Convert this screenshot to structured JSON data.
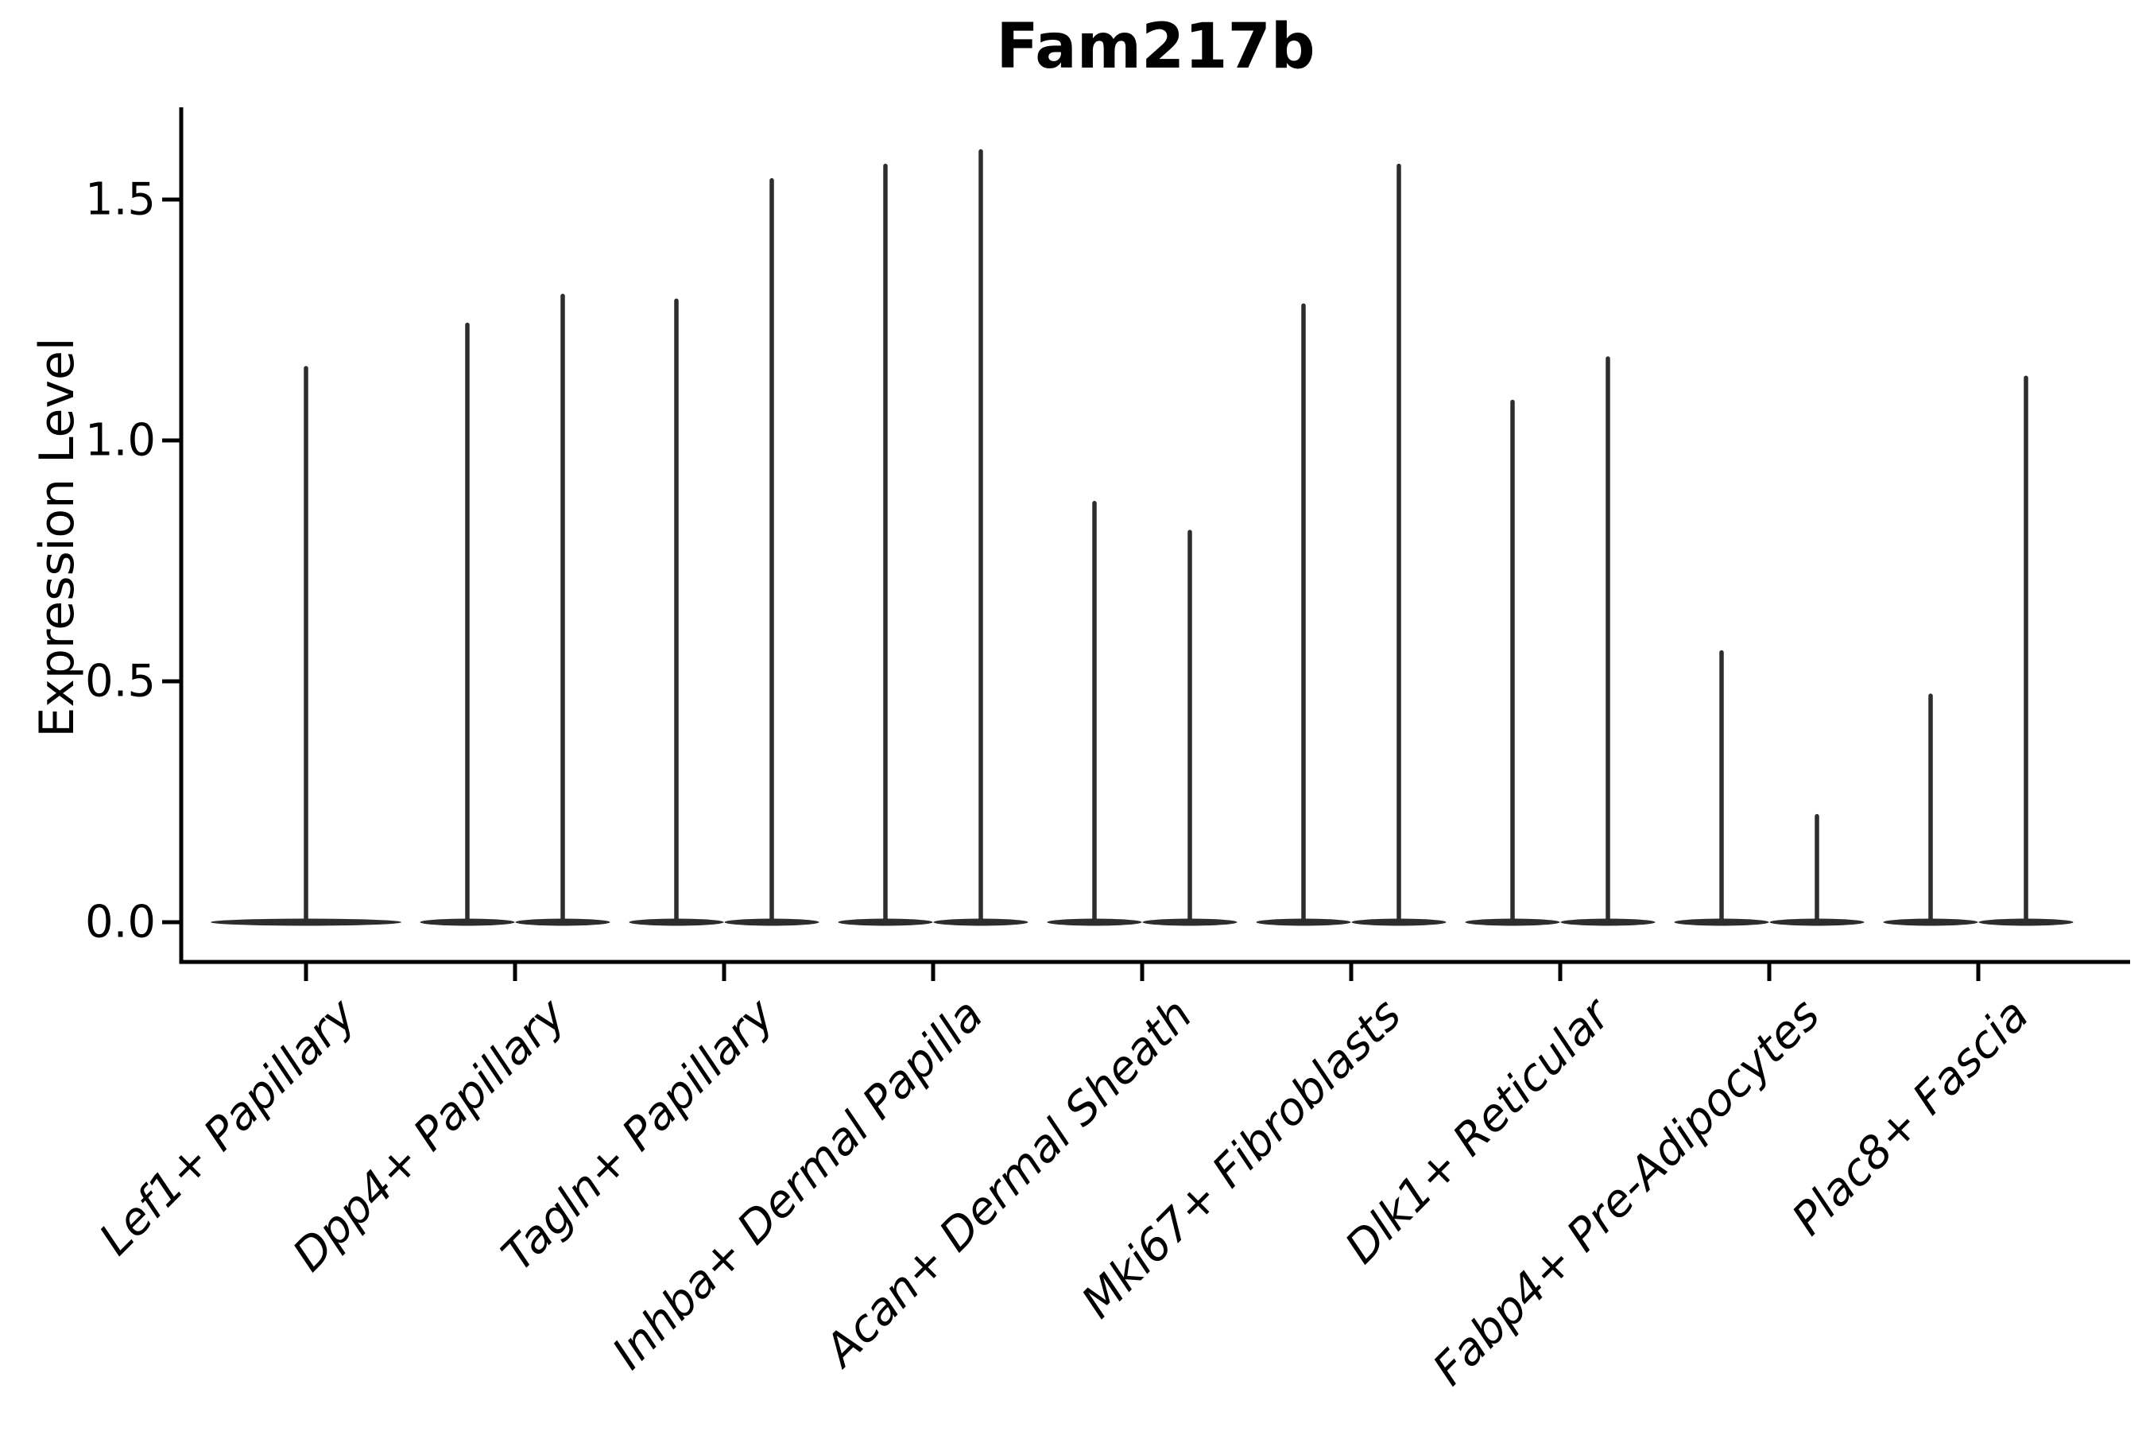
{
  "chart_data": {
    "type": "violin",
    "title": "Fam217b",
    "xlabel": "",
    "ylabel": "Expression Level",
    "ylim": [
      -0.08,
      1.72
    ],
    "grid": false,
    "legend": null,
    "yticks": [
      {
        "label": "0.0",
        "value": 0.0
      },
      {
        "label": "0.5",
        "value": 0.5
      },
      {
        "label": "1.0",
        "value": 1.0
      },
      {
        "label": "1.5",
        "value": 1.5
      }
    ],
    "categories": [
      "Lef1+ Papillary",
      "Dpp4+ Papillary",
      "Tagln+ Papillary",
      "Inhba+ Dermal Papilla",
      "Acan+ Dermal Sheath",
      "Mki67+ Fibroblasts",
      "Dlk1+ Reticular",
      "Fabp4+ Pre-Adipocytes",
      "Plac8+ Fascia"
    ],
    "violins": [
      {
        "category": "Lef1+ Papillary",
        "spike_maxima": [
          1.15
        ],
        "mass_at_zero": true
      },
      {
        "category": "Dpp4+ Papillary",
        "spike_maxima": [
          1.24,
          1.3
        ],
        "mass_at_zero": true
      },
      {
        "category": "Tagln+ Papillary",
        "spike_maxima": [
          1.29,
          1.54
        ],
        "mass_at_zero": true
      },
      {
        "category": "Inhba+ Dermal Papilla",
        "spike_maxima": [
          1.57,
          1.6
        ],
        "mass_at_zero": true
      },
      {
        "category": "Acan+ Dermal Sheath",
        "spike_maxima": [
          0.87,
          0.81
        ],
        "mass_at_zero": true
      },
      {
        "category": "Mki67+ Fibroblasts",
        "spike_maxima": [
          1.28,
          1.57
        ],
        "mass_at_zero": true
      },
      {
        "category": "Dlk1+ Reticular",
        "spike_maxima": [
          1.08,
          1.17
        ],
        "mass_at_zero": true
      },
      {
        "category": "Fabp4+ Pre-Adipocytes",
        "spike_maxima": [
          0.56,
          0.22
        ],
        "mass_at_zero": true
      },
      {
        "category": "Plac8+ Fascia",
        "spike_maxima": [
          0.47,
          1.13
        ],
        "mass_at_zero": true
      }
    ],
    "style": {
      "violin_color": "#2d2d2d",
      "axis_color": "#000000",
      "text_color": "#000000",
      "background": "#ffffff"
    }
  }
}
